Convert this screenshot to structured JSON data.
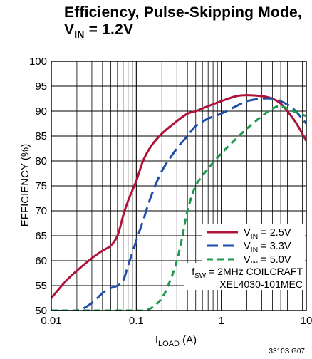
{
  "chart_data": {
    "type": "line",
    "title_line1": "Efficiency, Pulse-Skipping Mode,",
    "title_line2_main": "V",
    "title_line2_sub": "IN",
    "title_line2_rest": " = 1.2V",
    "ylabel": "EFFICIENCY (%)",
    "xlabel_main": "I",
    "xlabel_sub": "LOAD",
    "xlabel_unit": " (A)",
    "x_scale": "log",
    "xlim": [
      0.01,
      10
    ],
    "ylim": [
      50,
      100
    ],
    "x_ticks": [
      0.01,
      0.1,
      1,
      10
    ],
    "x_tick_labels": [
      "0.01",
      "0.1",
      "1",
      "10"
    ],
    "y_ticks": [
      50,
      55,
      60,
      65,
      70,
      75,
      80,
      85,
      90,
      95,
      100
    ],
    "y_tick_labels": [
      "50",
      "55",
      "60",
      "65",
      "70",
      "75",
      "80",
      "85",
      "90",
      "95",
      "100"
    ],
    "grid": true,
    "legend_position": "lower-right",
    "series": [
      {
        "name_main": "V",
        "name_sub": "IN",
        "name_rest": " = 2.5V",
        "color": "#b0123a",
        "dash": "solid",
        "x": [
          0.01,
          0.015,
          0.02,
          0.03,
          0.04,
          0.05,
          0.06,
          0.07,
          0.08,
          0.1,
          0.12,
          0.15,
          0.2,
          0.3,
          0.4,
          0.5,
          0.7,
          1.0,
          1.5,
          2.0,
          3.0,
          4.0,
          5.0,
          6.0,
          7.0,
          8.0,
          10.0
        ],
        "y": [
          52.5,
          56.0,
          58.0,
          60.5,
          62.0,
          63.0,
          65.0,
          69.0,
          72.0,
          76.0,
          80.0,
          83.0,
          85.5,
          88.0,
          89.5,
          90.0,
          91.0,
          92.0,
          93.0,
          93.2,
          93.0,
          92.5,
          91.5,
          90.0,
          88.5,
          87.0,
          84.0
        ]
      },
      {
        "name_main": "V",
        "name_sub": "IN",
        "name_rest": " = 3.3V",
        "color": "#1f4fa8",
        "dash": "long",
        "x": [
          0.01,
          0.02,
          0.03,
          0.04,
          0.05,
          0.06,
          0.07,
          0.08,
          0.1,
          0.12,
          0.15,
          0.2,
          0.3,
          0.4,
          0.5,
          0.7,
          1.0,
          1.5,
          2.0,
          3.0,
          4.0,
          5.0,
          7.0,
          10.0
        ],
        "y": [
          50.0,
          50.0,
          51.5,
          53.5,
          54.5,
          55.0,
          56.0,
          59.0,
          64.0,
          68.0,
          73.0,
          78.0,
          82.5,
          85.0,
          87.0,
          88.5,
          89.5,
          91.0,
          92.0,
          92.5,
          92.5,
          92.0,
          90.5,
          87.5
        ]
      },
      {
        "name_main": "V",
        "name_sub": "IN",
        "name_rest": " = 5.0V",
        "color": "#1a9a4a",
        "dash": "short",
        "x": [
          0.01,
          0.05,
          0.1,
          0.12,
          0.15,
          0.2,
          0.25,
          0.3,
          0.35,
          0.4,
          0.5,
          0.7,
          1.0,
          1.5,
          2.0,
          3.0,
          4.0,
          5.0,
          7.0,
          10.0
        ],
        "y": [
          50.0,
          50.0,
          50.0,
          50.0,
          50.5,
          52.5,
          56.0,
          60.0,
          65.0,
          70.0,
          75.0,
          78.5,
          81.5,
          84.5,
          86.5,
          89.0,
          90.5,
          91.0,
          90.0,
          89.0
        ]
      }
    ],
    "annotation_line1_main": "f",
    "annotation_line1_sub": "SW",
    "annotation_line1_rest": " = 2MHz COILCRAFT",
    "annotation_line2": "XEL4030-101MEC",
    "figure_code": "3310S G07"
  }
}
